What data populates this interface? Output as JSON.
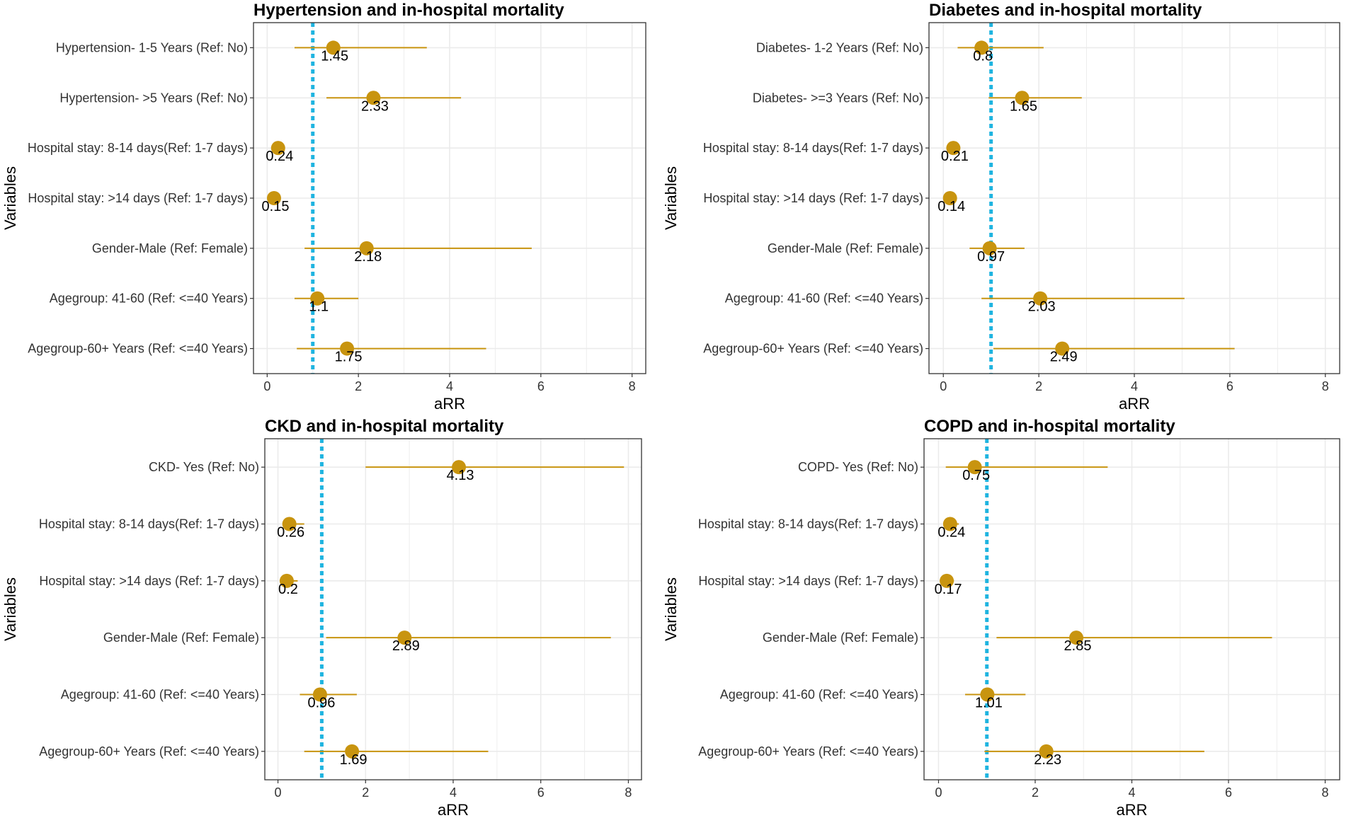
{
  "figure": {
    "colors": {
      "point": "#c8940f",
      "ci_line": "#c8940f",
      "reference_line": "#1fb4e0",
      "grid": "#ebebeb",
      "panel_border": "#333333"
    },
    "icons": [
      "point-marker-icon"
    ]
  },
  "chart_data": [
    {
      "type": "forest",
      "title": "Hypertension and in-hospital mortality",
      "xlabel": "aRR",
      "ylabel": "Variables",
      "xlim": [
        -0.3,
        8.3
      ],
      "xticks": [
        0,
        2,
        4,
        6,
        8
      ],
      "reference_value": 1,
      "rows": [
        {
          "label": "Hypertension- 1-5 Years (Ref: No)",
          "value": 1.45,
          "display": "1.45",
          "lower": 0.6,
          "upper": 3.5
        },
        {
          "label": "Hypertension- >5 Years (Ref: No)",
          "value": 2.33,
          "display": "2.33",
          "lower": 1.3,
          "upper": 4.25
        },
        {
          "label": "Hospital stay: 8-14 days(Ref: 1-7 days)",
          "value": 0.24,
          "display": "0.24",
          "lower": 0.15,
          "upper": 0.38
        },
        {
          "label": "Hospital stay: >14 days (Ref: 1-7 days)",
          "value": 0.15,
          "display": "0.15",
          "lower": 0.08,
          "upper": 0.27
        },
        {
          "label": "Gender-Male (Ref: Female)",
          "value": 2.18,
          "display": "2.18",
          "lower": 0.82,
          "upper": 5.8
        },
        {
          "label": "Agegroup: 41-60 (Ref: <=40 Years)",
          "value": 1.1,
          "display": "1.1",
          "lower": 0.6,
          "upper": 2.0
        },
        {
          "label": "Agegroup-60+ Years (Ref: <=40 Years)",
          "value": 1.75,
          "display": "1.75",
          "lower": 0.65,
          "upper": 4.8
        }
      ]
    },
    {
      "type": "forest",
      "title": "Diabetes and in-hospital mortality",
      "xlabel": "aRR",
      "ylabel": "Variables",
      "xlim": [
        -0.3,
        8.3
      ],
      "xticks": [
        0,
        2,
        4,
        6,
        8
      ],
      "reference_value": 1,
      "rows": [
        {
          "label": "Diabetes- 1-2 Years (Ref: No)",
          "value": 0.8,
          "display": "0.8",
          "lower": 0.3,
          "upper": 2.1
        },
        {
          "label": "Diabetes- >=3 Years (Ref: No)",
          "value": 1.65,
          "display": "1.65",
          "lower": 0.95,
          "upper": 2.9
        },
        {
          "label": "Hospital stay: 8-14 days(Ref: 1-7 days)",
          "value": 0.21,
          "display": "0.21",
          "lower": 0.12,
          "upper": 0.35
        },
        {
          "label": "Hospital stay: >14 days (Ref: 1-7 days)",
          "value": 0.14,
          "display": "0.14",
          "lower": 0.07,
          "upper": 0.26
        },
        {
          "label": "Gender-Male (Ref: Female)",
          "value": 0.97,
          "display": "0.97",
          "lower": 0.55,
          "upper": 1.7
        },
        {
          "label": "Agegroup: 41-60 (Ref: <=40 Years)",
          "value": 2.03,
          "display": "2.03",
          "lower": 0.8,
          "upper": 5.05
        },
        {
          "label": "Agegroup-60+ Years (Ref: <=40 Years)",
          "value": 2.49,
          "display": "2.49",
          "lower": 1.05,
          "upper": 6.1
        }
      ]
    },
    {
      "type": "forest",
      "title": "CKD and in-hospital mortality",
      "xlabel": "aRR",
      "ylabel": "Variables",
      "xlim": [
        -0.3,
        8.3
      ],
      "xticks": [
        0,
        2,
        4,
        6,
        8
      ],
      "reference_value": 1,
      "rows": [
        {
          "label": "CKD- Yes (Ref: No)",
          "value": 4.13,
          "display": "4.13",
          "lower": 2.0,
          "upper": 7.9
        },
        {
          "label": "Hospital stay: 8-14 days(Ref: 1-7 days)",
          "value": 0.26,
          "display": "0.26",
          "lower": 0.15,
          "upper": 0.6
        },
        {
          "label": "Hospital stay: >14 days (Ref: 1-7 days)",
          "value": 0.2,
          "display": "0.2",
          "lower": 0.1,
          "upper": 0.45
        },
        {
          "label": "Gender-Male (Ref: Female)",
          "value": 2.89,
          "display": "2.89",
          "lower": 1.1,
          "upper": 7.6
        },
        {
          "label": "Agegroup: 41-60 (Ref: <=40 Years)",
          "value": 0.96,
          "display": "0.96",
          "lower": 0.5,
          "upper": 1.8
        },
        {
          "label": "Agegroup-60+ Years (Ref: <=40 Years)",
          "value": 1.69,
          "display": "1.69",
          "lower": 0.6,
          "upper": 4.8
        }
      ]
    },
    {
      "type": "forest",
      "title": "COPD and in-hospital mortality",
      "xlabel": "aRR",
      "ylabel": "Variables",
      "xlim": [
        -0.3,
        8.3
      ],
      "xticks": [
        0,
        2,
        4,
        6,
        8
      ],
      "reference_value": 1,
      "rows": [
        {
          "label": "COPD- Yes (Ref: No)",
          "value": 0.75,
          "display": "0.75",
          "lower": 0.15,
          "upper": 3.5
        },
        {
          "label": "Hospital stay: 8-14 days(Ref: 1-7 days)",
          "value": 0.24,
          "display": "0.24",
          "lower": 0.13,
          "upper": 0.42
        },
        {
          "label": "Hospital stay: >14 days (Ref: 1-7 days)",
          "value": 0.17,
          "display": "0.17",
          "lower": 0.09,
          "upper": 0.32
        },
        {
          "label": "Gender-Male (Ref: Female)",
          "value": 2.85,
          "display": "2.85",
          "lower": 1.2,
          "upper": 6.9
        },
        {
          "label": "Agegroup: 41-60 (Ref: <=40 Years)",
          "value": 1.01,
          "display": "1.01",
          "lower": 0.55,
          "upper": 1.8
        },
        {
          "label": "Agegroup-60+ Years (Ref: <=40 Years)",
          "value": 2.23,
          "display": "2.23",
          "lower": 0.95,
          "upper": 5.5
        }
      ]
    }
  ]
}
